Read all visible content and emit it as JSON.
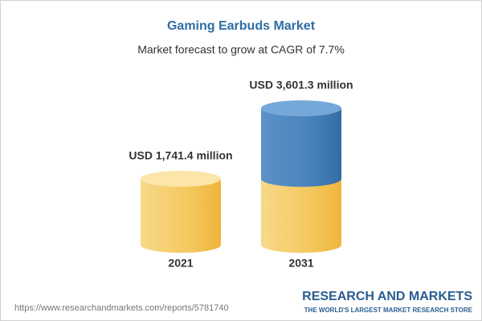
{
  "chart_data": {
    "type": "cylinder",
    "title": "Gaming Earbuds Market",
    "subtitle": "Market forecast to grow at CAGR of 7.7%",
    "categories": [
      "2021",
      "2031"
    ],
    "values": [
      1741.4,
      3601.3
    ],
    "value_labels": [
      "USD 1,741.4 million",
      "USD 3,601.3 million"
    ],
    "colors": [
      "#f3c456",
      "#3f7ab6"
    ]
  },
  "footer": {
    "source_url": "https://www.researchandmarkets.com/reports/5781740",
    "logo": "RESEARCH AND MARKETS",
    "tagline": "THE WORLD'S LARGEST MARKET RESEARCH STORE"
  }
}
